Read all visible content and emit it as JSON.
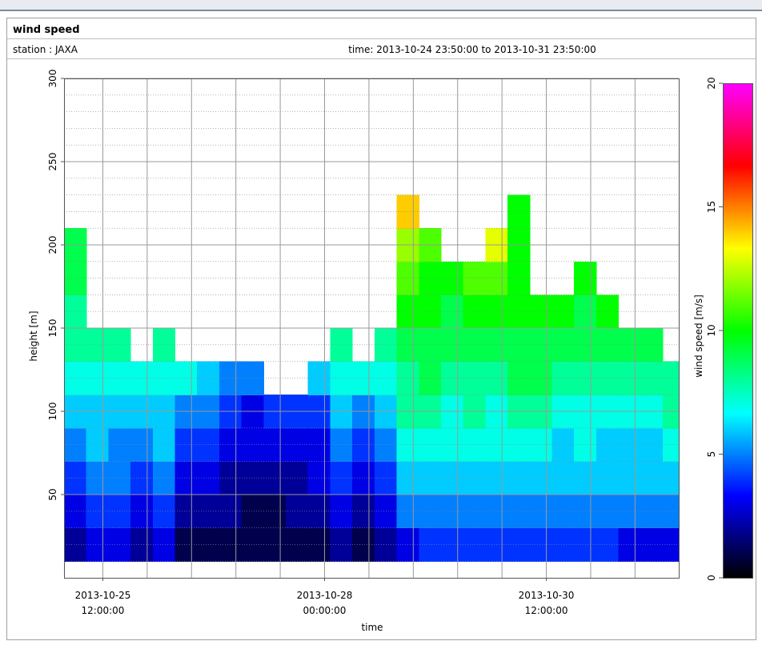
{
  "chart_data": {
    "type": "heatmap",
    "title": "wind speed",
    "station": "station : JAXA",
    "period": "time: 2013-10-24 23:50:00 to 2013-10-31 23:50:00",
    "x_label": "time",
    "y_label": "height [m]",
    "colorbar_label": "wind speed [m/s]",
    "xlim": [
      "2013-10-25T01:30",
      "2013-10-31T23:50"
    ],
    "xticks": [
      {
        "value": "2013-10-25T12:00",
        "label": [
          "2013-10-25",
          "12:00:00"
        ]
      },
      {
        "value": "2013-10-28T00:00",
        "label": [
          "2013-10-28",
          "00:00:00"
        ]
      },
      {
        "value": "2013-10-30T12:00",
        "label": [
          "2013-10-30",
          "12:00:00"
        ]
      }
    ],
    "xgrid": [
      "2013-10-25T12:00",
      "2013-10-26T00:00",
      "2013-10-26T12:00",
      "2013-10-27T00:00",
      "2013-10-27T12:00",
      "2013-10-28T00:00",
      "2013-10-28T12:00",
      "2013-10-29T00:00",
      "2013-10-29T12:00",
      "2013-10-30T00:00",
      "2013-10-30T12:00",
      "2013-10-31T00:00",
      "2013-10-31T12:00"
    ],
    "ylim": [
      0,
      300
    ],
    "yticks": [
      50,
      100,
      150,
      200,
      250,
      300
    ],
    "zlim": [
      0,
      20
    ],
    "zticks": [
      0,
      5,
      10,
      15,
      20
    ],
    "colormap": [
      "#000000",
      "#0000ff",
      "#00ffff",
      "#00ff00",
      "#ffff00",
      "#ff0000",
      "#ff00ff"
    ],
    "grid": true,
    "x_bins": [
      "2013-10-25T01:30",
      "2013-10-25T07:30",
      "2013-10-25T13:30",
      "2013-10-25T19:30",
      "2013-10-26T01:30",
      "2013-10-26T07:30",
      "2013-10-26T13:30",
      "2013-10-26T19:30",
      "2013-10-27T01:30",
      "2013-10-27T07:30",
      "2013-10-27T13:30",
      "2013-10-27T19:30",
      "2013-10-28T01:30",
      "2013-10-28T07:30",
      "2013-10-28T13:30",
      "2013-10-28T19:30",
      "2013-10-29T01:30",
      "2013-10-29T07:30",
      "2013-10-29T13:30",
      "2013-10-29T19:30",
      "2013-10-30T01:30",
      "2013-10-30T07:30",
      "2013-10-30T13:30",
      "2013-10-30T19:30",
      "2013-10-31T01:30",
      "2013-10-31T07:30",
      "2013-10-31T13:30",
      "2013-10-31T19:30",
      "2013-10-31T23:50"
    ],
    "y_bins": [
      10,
      30,
      50,
      70,
      90,
      110,
      130,
      150,
      170,
      190,
      210,
      230,
      250
    ],
    "values": [
      [
        2,
        3,
        4,
        5,
        6,
        7,
        8,
        8,
        9,
        9,
        null,
        null
      ],
      [
        3,
        4,
        5,
        6,
        6,
        7,
        8,
        null,
        null,
        null,
        null,
        null
      ],
      [
        3,
        4,
        5,
        5,
        6,
        7,
        8,
        null,
        null,
        null,
        null,
        null
      ],
      [
        2,
        3,
        4,
        5,
        6,
        7,
        null,
        null,
        null,
        null,
        null,
        null
      ],
      [
        3,
        4,
        5,
        6,
        6,
        7,
        8,
        null,
        null,
        null,
        null,
        null
      ],
      [
        1,
        2,
        3,
        4,
        5,
        7,
        null,
        null,
        null,
        null,
        null,
        null
      ],
      [
        1,
        2,
        3,
        4,
        5,
        6,
        null,
        null,
        null,
        null,
        null,
        null
      ],
      [
        1,
        2,
        2,
        3,
        4,
        5,
        null,
        null,
        null,
        null,
        null,
        null
      ],
      [
        1,
        1,
        2,
        3,
        3,
        5,
        null,
        null,
        null,
        null,
        null,
        null
      ],
      [
        1,
        1,
        2,
        3,
        4,
        null,
        null,
        null,
        null,
        null,
        null,
        null
      ],
      [
        1,
        2,
        2,
        3,
        4,
        null,
        null,
        null,
        null,
        null,
        null,
        null
      ],
      [
        1,
        2,
        3,
        3,
        4,
        6,
        null,
        null,
        null,
        null,
        null,
        null
      ],
      [
        2,
        3,
        4,
        5,
        6,
        7,
        8,
        null,
        null,
        null,
        null,
        null
      ],
      [
        1,
        2,
        3,
        4,
        5,
        7,
        null,
        null,
        null,
        null,
        null,
        null
      ],
      [
        2,
        3,
        4,
        5,
        6,
        7,
        8,
        null,
        null,
        null,
        null,
        null
      ],
      [
        3,
        5,
        6,
        7,
        8,
        8,
        9,
        10,
        11,
        12,
        14,
        null
      ],
      [
        4,
        5,
        6,
        7,
        8,
        9,
        9,
        10,
        10,
        11,
        null,
        null
      ],
      [
        4,
        5,
        6,
        7,
        7,
        8,
        9,
        9,
        10,
        null,
        null,
        null
      ],
      [
        4,
        5,
        6,
        7,
        8,
        8,
        9,
        10,
        11,
        null,
        null,
        null
      ],
      [
        4,
        5,
        6,
        7,
        7,
        8,
        9,
        10,
        11,
        13,
        null,
        null
      ],
      [
        4,
        5,
        6,
        7,
        8,
        9,
        9,
        10,
        10,
        10,
        10,
        null
      ],
      [
        4,
        5,
        6,
        7,
        8,
        9,
        9,
        10,
        null,
        null,
        null,
        null
      ],
      [
        4,
        5,
        6,
        6,
        7,
        8,
        9,
        10,
        null,
        null,
        null,
        null
      ],
      [
        4,
        5,
        6,
        7,
        7,
        8,
        9,
        9,
        10,
        null,
        null,
        null
      ],
      [
        4,
        5,
        6,
        6,
        7,
        8,
        9,
        10,
        null,
        null,
        null,
        null
      ],
      [
        3,
        5,
        6,
        6,
        7,
        8,
        9,
        null,
        null,
        null,
        null,
        null
      ],
      [
        3,
        5,
        6,
        6,
        7,
        8,
        9,
        null,
        null,
        null,
        null,
        null
      ],
      [
        3,
        5,
        6,
        7,
        8,
        8,
        null,
        null,
        null,
        null,
        null,
        null
      ]
    ]
  }
}
